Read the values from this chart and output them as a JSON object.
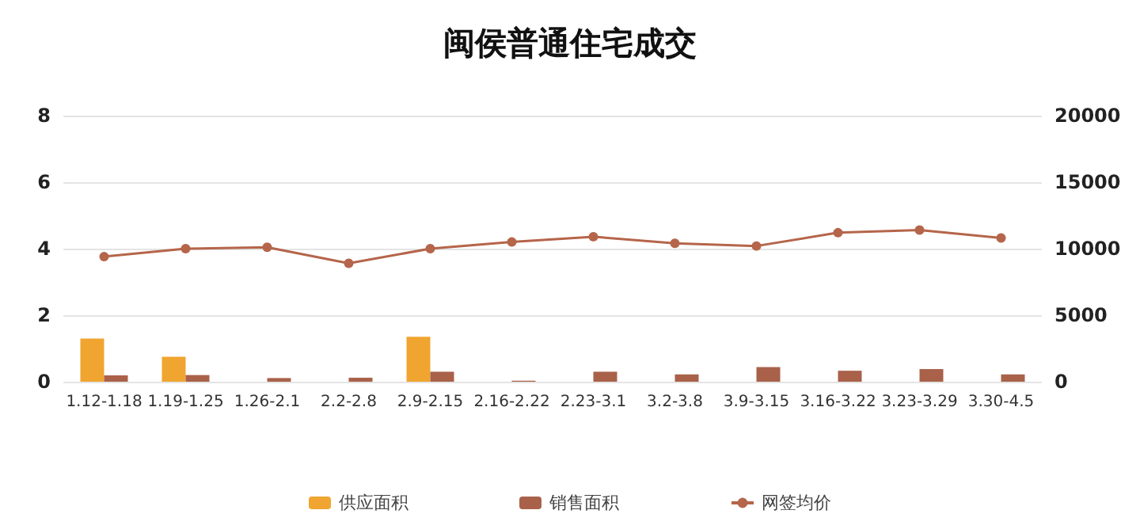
{
  "chart_data": {
    "type": "bar",
    "title": "闽侯普通住宅成交",
    "categories": [
      "1.12-1.18",
      "1.19-1.25",
      "1.26-2.1",
      "2.2-2.8",
      "2.9-2.15",
      "2.16-2.22",
      "2.23-3.1",
      "3.2-3.8",
      "3.9-3.15",
      "3.16-3.22",
      "3.23-3.29",
      "3.30-4.5"
    ],
    "series": [
      {
        "name": "供应面积",
        "color": "#f0a530",
        "values": [
          1.3,
          0.75,
          0,
          0,
          1.35,
          0,
          0,
          0,
          0,
          0,
          0,
          0
        ]
      },
      {
        "name": "销售面积",
        "color": "#a9614a",
        "values": [
          0.19,
          0.2,
          0.11,
          0.12,
          0.3,
          0.03,
          0.3,
          0.22,
          0.44,
          0.33,
          0.38,
          0.22
        ]
      },
      {
        "name": "网签均价",
        "type": "line",
        "axis": "y2",
        "color": "#b5654a",
        "marker": "circle",
        "values": [
          9400,
          10000,
          10100,
          8900,
          10000,
          10500,
          10900,
          10400,
          10200,
          11200,
          11400,
          10800
        ]
      }
    ],
    "ylim": [
      0,
      8
    ],
    "yticks": [
      0,
      2,
      4,
      6,
      8
    ],
    "y2lim": [
      0,
      20000
    ],
    "y2ticks": [
      0,
      5000,
      10000,
      15000,
      20000
    ],
    "grid": "y",
    "legend": "bottom"
  }
}
